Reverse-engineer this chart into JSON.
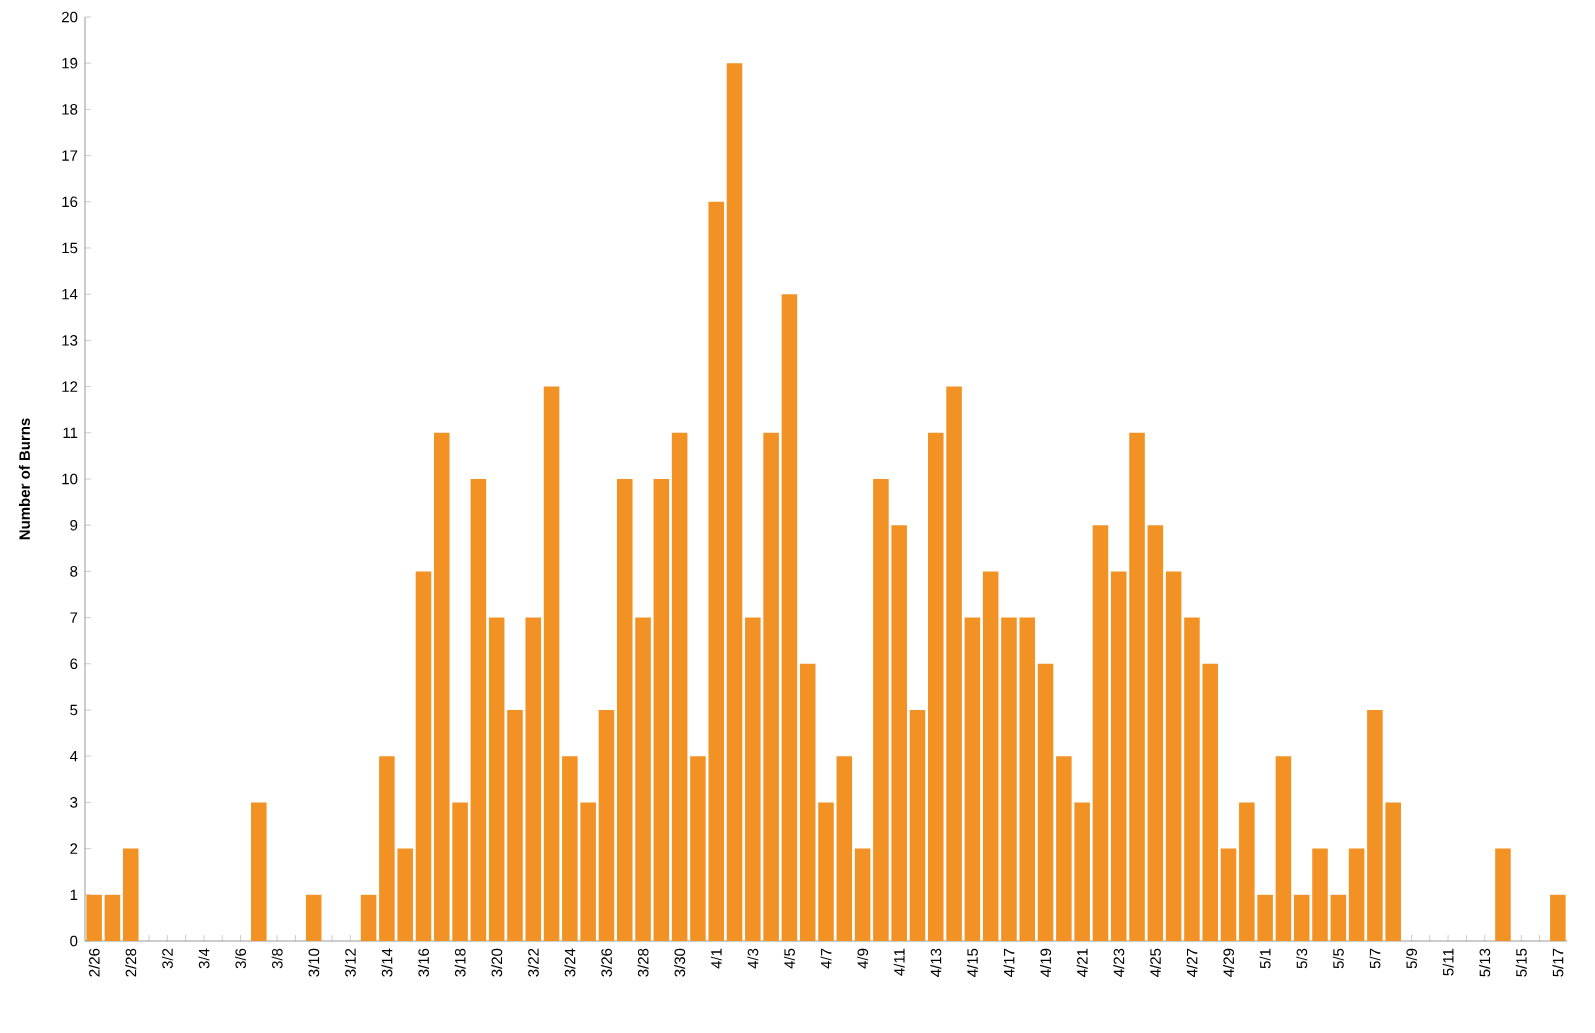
{
  "chart_data": {
    "type": "bar",
    "ylabel": "Number of Burns",
    "categories": [
      "2/26",
      null,
      "2/28",
      null,
      "3/2",
      null,
      "3/4",
      null,
      "3/6",
      null,
      "3/8",
      null,
      "3/10",
      null,
      "3/12",
      null,
      "3/14",
      null,
      "3/16",
      null,
      "3/18",
      null,
      "3/20",
      null,
      "3/22",
      null,
      "3/24",
      null,
      "3/26",
      null,
      "3/28",
      null,
      "3/30",
      null,
      "4/1",
      null,
      "4/3",
      null,
      "4/5",
      null,
      "4/7",
      null,
      "4/9",
      null,
      "4/11",
      null,
      "4/13",
      null,
      "4/15",
      null,
      "4/17",
      null,
      "4/19",
      null,
      "4/21",
      null,
      "4/23",
      null,
      "4/25",
      null,
      "4/27",
      null,
      "4/29",
      null,
      "5/1",
      null,
      "5/3",
      null,
      "5/5",
      null,
      "5/7",
      null,
      "5/9",
      null,
      "5/11",
      null,
      "5/13",
      null,
      "5/15",
      null,
      "5/17"
    ],
    "values": [
      1,
      1,
      2,
      0,
      0,
      0,
      0,
      0,
      0,
      3,
      0,
      0,
      1,
      0,
      0,
      1,
      4,
      2,
      8,
      11,
      3,
      10,
      7,
      5,
      7,
      12,
      4,
      3,
      5,
      10,
      7,
      10,
      11,
      4,
      16,
      19,
      7,
      11,
      14,
      6,
      3,
      4,
      2,
      10,
      9,
      5,
      11,
      12,
      7,
      8,
      7,
      7,
      6,
      4,
      3,
      9,
      8,
      11,
      9,
      8,
      7,
      6,
      2,
      3,
      1,
      4,
      1,
      2,
      1,
      2,
      5,
      3,
      0,
      0,
      0,
      0,
      0,
      2,
      0,
      0,
      1
    ],
    "color": "#f39224",
    "ylim": [
      0,
      20
    ],
    "yticks": [
      0,
      1,
      2,
      3,
      4,
      5,
      6,
      7,
      8,
      9,
      10,
      11,
      12,
      13,
      14,
      15,
      16,
      17,
      18,
      19,
      20
    ]
  }
}
